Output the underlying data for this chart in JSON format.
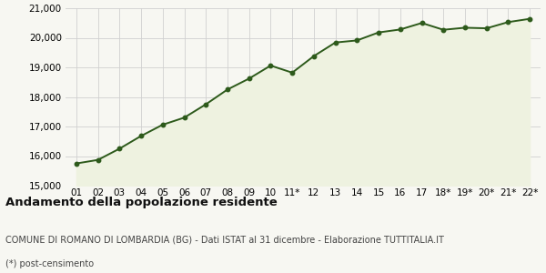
{
  "x_labels": [
    "01",
    "02",
    "03",
    "04",
    "05",
    "06",
    "07",
    "08",
    "09",
    "10",
    "11*",
    "12",
    "13",
    "14",
    "15",
    "16",
    "17",
    "18*",
    "19*",
    "20*",
    "21*",
    "22*"
  ],
  "values": [
    15750,
    15870,
    16250,
    16680,
    17060,
    17300,
    17750,
    18250,
    18620,
    19060,
    18820,
    19380,
    19840,
    19910,
    20180,
    20280,
    20500,
    20270,
    20340,
    20320,
    20530,
    20640
  ],
  "ylim": [
    15000,
    21000
  ],
  "yticks": [
    15000,
    16000,
    17000,
    18000,
    19000,
    20000,
    21000
  ],
  "line_color": "#2d5a1b",
  "fill_color": "#eef2e0",
  "marker_color": "#2d5a1b",
  "bg_color": "#f7f7f2",
  "plot_bg_color": "#f7f7f2",
  "grid_color": "#d0d0d0",
  "title1": "Andamento della popolazione residente",
  "title2": "COMUNE DI ROMANO DI LOMBARDIA (BG) - Dati ISTAT al 31 dicembre - Elaborazione TUTTITALIA.IT",
  "title3": "(*) post-censimento",
  "title1_fontsize": 9.5,
  "title2_fontsize": 7.0,
  "title3_fontsize": 7.0,
  "tick_fontsize": 7.5
}
